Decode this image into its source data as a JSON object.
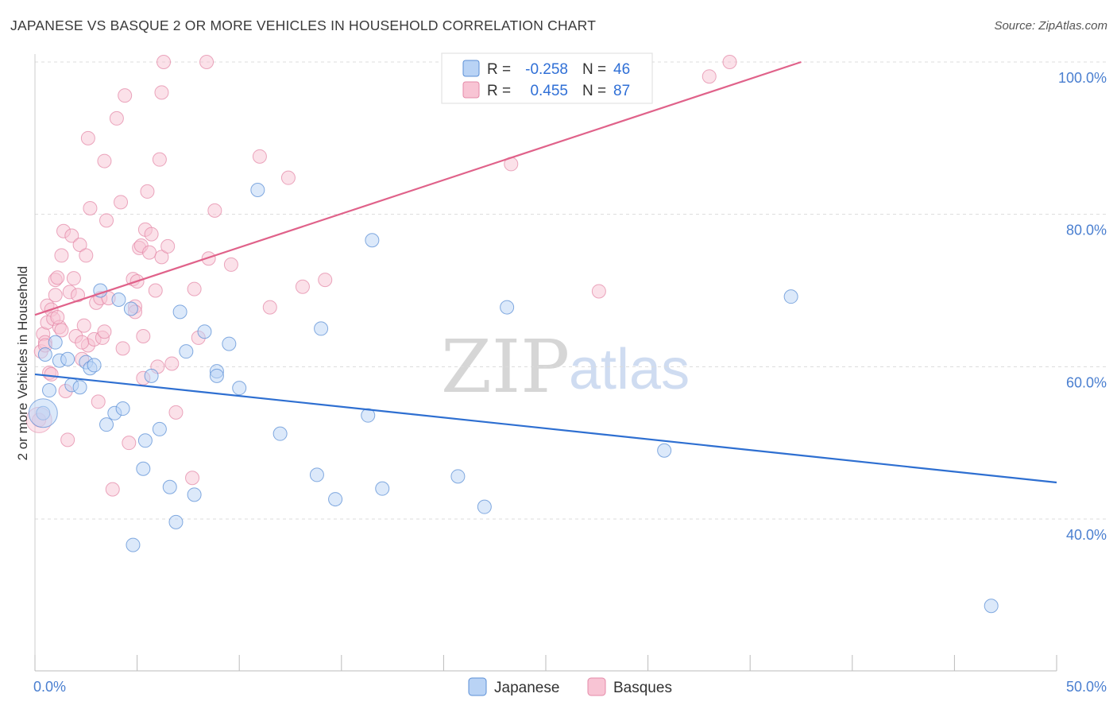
{
  "header": {
    "title": "JAPANESE VS BASQUE 2 OR MORE VEHICLES IN HOUSEHOLD CORRELATION CHART",
    "source": "Source: ZipAtlas.com"
  },
  "watermark": {
    "zip": "ZIP",
    "atlas": "atlas"
  },
  "colors": {
    "japanese_fill": "#b9d3f5",
    "japanese_stroke": "#5b8fd6",
    "japanese_line": "#2e6fd1",
    "basque_fill": "#f8c4d4",
    "basque_stroke": "#e48aa8",
    "basque_line": "#e0628a"
  },
  "legend_top": {
    "rows": [
      {
        "r_label": "R =",
        "r_value": "-0.258",
        "n_label": "N =",
        "n_value": "46"
      },
      {
        "r_label": "R =",
        "r_value": "0.455",
        "n_label": "N =",
        "n_value": "87"
      }
    ]
  },
  "chart_data": {
    "type": "scatter",
    "title": "JAPANESE VS BASQUE 2 OR MORE VEHICLES IN HOUSEHOLD CORRELATION CHART",
    "xlabel": "",
    "ylabel": "2 or more Vehicles in Household",
    "xlim": [
      0,
      50
    ],
    "ylim": [
      20,
      100
    ],
    "x_tick_labels": [
      "0.0%",
      "50.0%"
    ],
    "y_ticks": [
      40,
      60,
      80,
      100
    ],
    "y_tick_labels": [
      "40.0%",
      "60.0%",
      "80.0%",
      "100.0%"
    ],
    "grid": true,
    "legend_position": "top-center",
    "series": [
      {
        "name": "Japanese",
        "r": -0.258,
        "n": 46,
        "trend": {
          "x": [
            0,
            50
          ],
          "y": [
            59.0,
            44.8
          ]
        },
        "points": [
          [
            0.4,
            53.9
          ],
          [
            0.5,
            61.6
          ],
          [
            0.7,
            56.9
          ],
          [
            1.0,
            63.2
          ],
          [
            1.2,
            60.8
          ],
          [
            1.6,
            61.0
          ],
          [
            1.8,
            57.6
          ],
          [
            2.2,
            57.3
          ],
          [
            2.5,
            60.6
          ],
          [
            2.7,
            59.8
          ],
          [
            2.9,
            60.2
          ],
          [
            3.2,
            70.0
          ],
          [
            3.5,
            52.4
          ],
          [
            3.9,
            53.9
          ],
          [
            4.1,
            68.8
          ],
          [
            4.3,
            54.5
          ],
          [
            4.7,
            67.6
          ],
          [
            4.8,
            36.6
          ],
          [
            5.3,
            46.6
          ],
          [
            5.4,
            50.3
          ],
          [
            5.7,
            58.8
          ],
          [
            6.1,
            51.8
          ],
          [
            6.6,
            44.2
          ],
          [
            6.9,
            39.6
          ],
          [
            7.1,
            67.2
          ],
          [
            7.4,
            62.0
          ],
          [
            7.8,
            43.2
          ],
          [
            8.3,
            64.6
          ],
          [
            8.9,
            59.4
          ],
          [
            8.9,
            58.8
          ],
          [
            9.5,
            63.0
          ],
          [
            10.0,
            57.2
          ],
          [
            10.9,
            83.2
          ],
          [
            12.0,
            51.2
          ],
          [
            13.8,
            45.8
          ],
          [
            14.0,
            65.0
          ],
          [
            14.7,
            42.6
          ],
          [
            16.3,
            53.6
          ],
          [
            16.5,
            76.6
          ],
          [
            17.0,
            44.0
          ],
          [
            20.7,
            45.6
          ],
          [
            22.0,
            41.6
          ],
          [
            23.1,
            67.8
          ],
          [
            30.8,
            49.0
          ],
          [
            37.0,
            69.2
          ],
          [
            46.8,
            28.6
          ]
        ]
      },
      {
        "name": "Basques",
        "r": 0.455,
        "n": 87,
        "trend": {
          "x": [
            0,
            37.5
          ],
          "y": [
            66.8,
            100
          ]
        },
        "points": [
          [
            0.2,
            53.0
          ],
          [
            0.3,
            62.0
          ],
          [
            0.4,
            64.3
          ],
          [
            0.5,
            63.2
          ],
          [
            0.6,
            65.8
          ],
          [
            0.6,
            68.0
          ],
          [
            0.7,
            59.2
          ],
          [
            0.8,
            67.5
          ],
          [
            0.9,
            66.3
          ],
          [
            1.0,
            69.4
          ],
          [
            1.0,
            71.4
          ],
          [
            1.1,
            71.7
          ],
          [
            1.2,
            65.2
          ],
          [
            1.3,
            64.8
          ],
          [
            1.3,
            74.6
          ],
          [
            1.4,
            77.8
          ],
          [
            1.5,
            56.8
          ],
          [
            1.6,
            50.4
          ],
          [
            1.7,
            69.8
          ],
          [
            1.8,
            77.2
          ],
          [
            1.9,
            71.6
          ],
          [
            2.0,
            64.0
          ],
          [
            2.1,
            69.4
          ],
          [
            2.2,
            76.0
          ],
          [
            2.3,
            61.0
          ],
          [
            2.4,
            65.4
          ],
          [
            2.5,
            74.6
          ],
          [
            2.6,
            90.0
          ],
          [
            2.6,
            62.8
          ],
          [
            2.7,
            80.8
          ],
          [
            2.9,
            63.6
          ],
          [
            3.0,
            68.4
          ],
          [
            3.1,
            55.4
          ],
          [
            3.2,
            69.0
          ],
          [
            3.3,
            63.8
          ],
          [
            3.4,
            87.0
          ],
          [
            3.4,
            64.6
          ],
          [
            3.5,
            79.2
          ],
          [
            3.6,
            69.0
          ],
          [
            3.8,
            43.9
          ],
          [
            4.0,
            92.6
          ],
          [
            4.2,
            81.6
          ],
          [
            4.3,
            62.4
          ],
          [
            4.4,
            95.6
          ],
          [
            4.6,
            50.0
          ],
          [
            4.8,
            71.5
          ],
          [
            4.9,
            67.9
          ],
          [
            5.0,
            71.2
          ],
          [
            5.1,
            75.6
          ],
          [
            5.2,
            75.9
          ],
          [
            5.3,
            64.0
          ],
          [
            5.3,
            58.5
          ],
          [
            5.4,
            78.0
          ],
          [
            5.5,
            83.0
          ],
          [
            5.6,
            75.0
          ],
          [
            5.7,
            77.4
          ],
          [
            5.9,
            70.0
          ],
          [
            6.0,
            60.0
          ],
          [
            6.1,
            87.2
          ],
          [
            6.2,
            74.4
          ],
          [
            6.2,
            96.0
          ],
          [
            6.3,
            100.0
          ],
          [
            6.5,
            75.8
          ],
          [
            6.7,
            60.4
          ],
          [
            6.9,
            54.0
          ],
          [
            7.7,
            45.4
          ],
          [
            7.8,
            70.2
          ],
          [
            8.0,
            63.8
          ],
          [
            8.4,
            100.0
          ],
          [
            8.5,
            74.2
          ],
          [
            8.8,
            80.5
          ],
          [
            9.6,
            73.4
          ],
          [
            11.0,
            87.6
          ],
          [
            11.5,
            67.8
          ],
          [
            12.4,
            84.8
          ],
          [
            13.1,
            70.5
          ],
          [
            14.2,
            71.4
          ],
          [
            23.3,
            86.6
          ],
          [
            27.6,
            69.9
          ],
          [
            33.0,
            98.1
          ],
          [
            34.0,
            100.0
          ],
          [
            0.5,
            62.8
          ],
          [
            0.8,
            59.0
          ],
          [
            1.1,
            66.5
          ],
          [
            2.3,
            63.2
          ],
          [
            4.9,
            67.2
          ],
          [
            20.5,
            100.0
          ]
        ]
      }
    ]
  }
}
